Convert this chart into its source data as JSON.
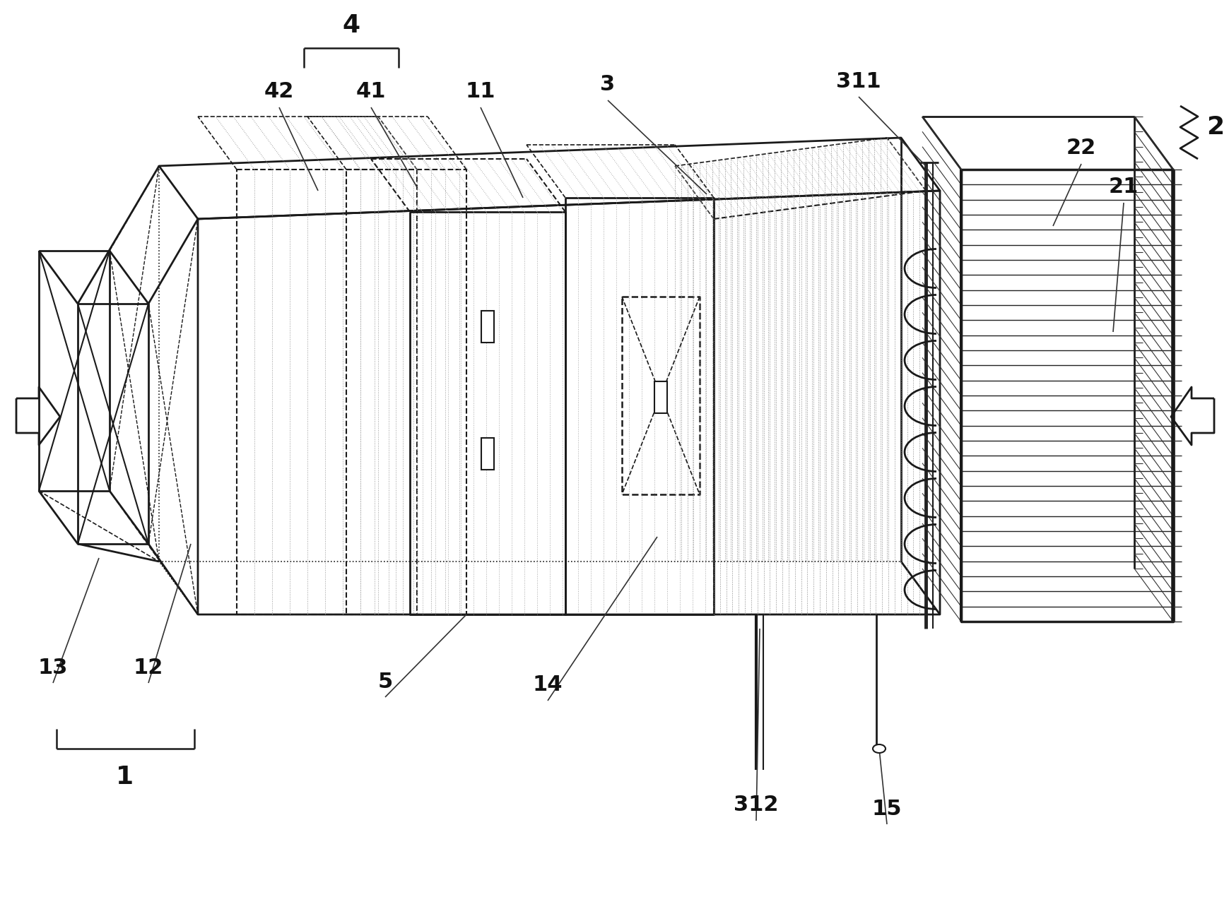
{
  "bg_color": "#ffffff",
  "line_color": "#1a1a1a",
  "label_color": "#111111",
  "figsize": [
    17.4,
    12.87
  ],
  "dpi": 100
}
